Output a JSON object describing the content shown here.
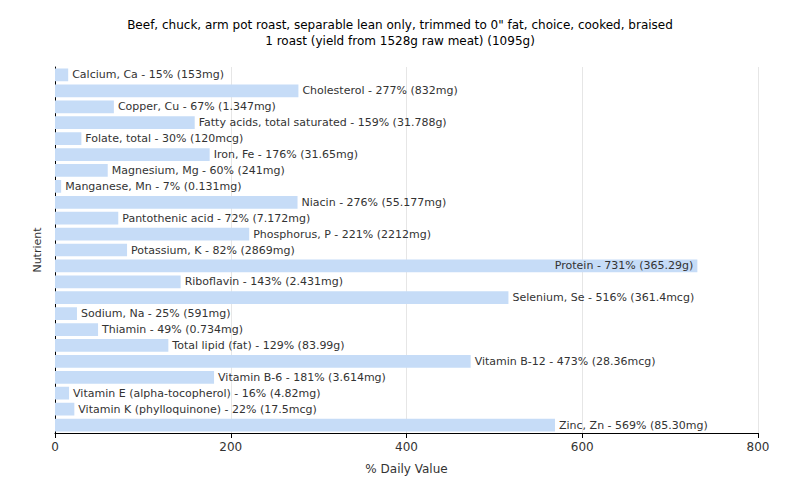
{
  "chart_data": {
    "type": "bar",
    "orientation": "horizontal",
    "title": "Beef, chuck, arm pot roast, separable lean only, trimmed to 0\" fat, choice, cooked, braised",
    "subtitle": "1 roast (yield from 1528g raw meat) (1095g)",
    "x_label": "% Daily Value",
    "y_label": "Nutrient",
    "categories": [
      null,
      null,
      null,
      null,
      null,
      null,
      null,
      null,
      null,
      null,
      null,
      null,
      null,
      null,
      null,
      null,
      null,
      null,
      null,
      null,
      null,
      null,
      null
    ],
    "values": [
      15,
      277,
      67,
      159,
      30,
      176,
      60,
      7,
      276,
      72,
      221,
      82,
      731,
      143,
      516,
      25,
      49,
      129,
      473,
      181,
      16,
      22,
      569
    ],
    "value_labels": [
      "Calcium, Ca - 15% (153mg)",
      "Cholesterol - 277% (832mg)",
      "Copper, Cu - 67% (1.347mg)",
      "Fatty acids, total saturated - 159% (31.788g)",
      "Folate, total - 30% (120mcg)",
      "Iron, Fe - 176% (31.65mg)",
      "Magnesium, Mg - 60% (241mg)",
      "Manganese, Mn - 7% (0.131mg)",
      "Niacin - 276% (55.177mg)",
      "Pantothenic acid - 72% (7.172mg)",
      "Phosphorus, P - 221% (2212mg)",
      "Potassium, K - 82% (2869mg)",
      "Protein - 731% (365.29g)",
      "Riboflavin - 143% (2.431mg)",
      "Selenium, Se - 516% (361.4mcg)",
      "Sodium, Na - 25% (591mg)",
      "Thiamin - 49% (0.734mg)",
      "Total lipid (fat) - 129% (83.99g)",
      "Vitamin B-12 - 473% (28.36mcg)",
      "Vitamin B-6 - 181% (3.614mg)",
      "Vitamin E (alpha-tocopherol) - 16% (4.82mg)",
      "Vitamin K (phylloquinone) - 22% (17.5mcg)",
      "Zinc, Zn - 569% (85.30mg)"
    ],
    "data_labels": true,
    "color": "#c6dcf7",
    "xlim": [
      0,
      800
    ],
    "xticks": [
      0,
      200,
      400,
      600,
      800
    ],
    "grid": true,
    "tick_labels": "x"
  }
}
